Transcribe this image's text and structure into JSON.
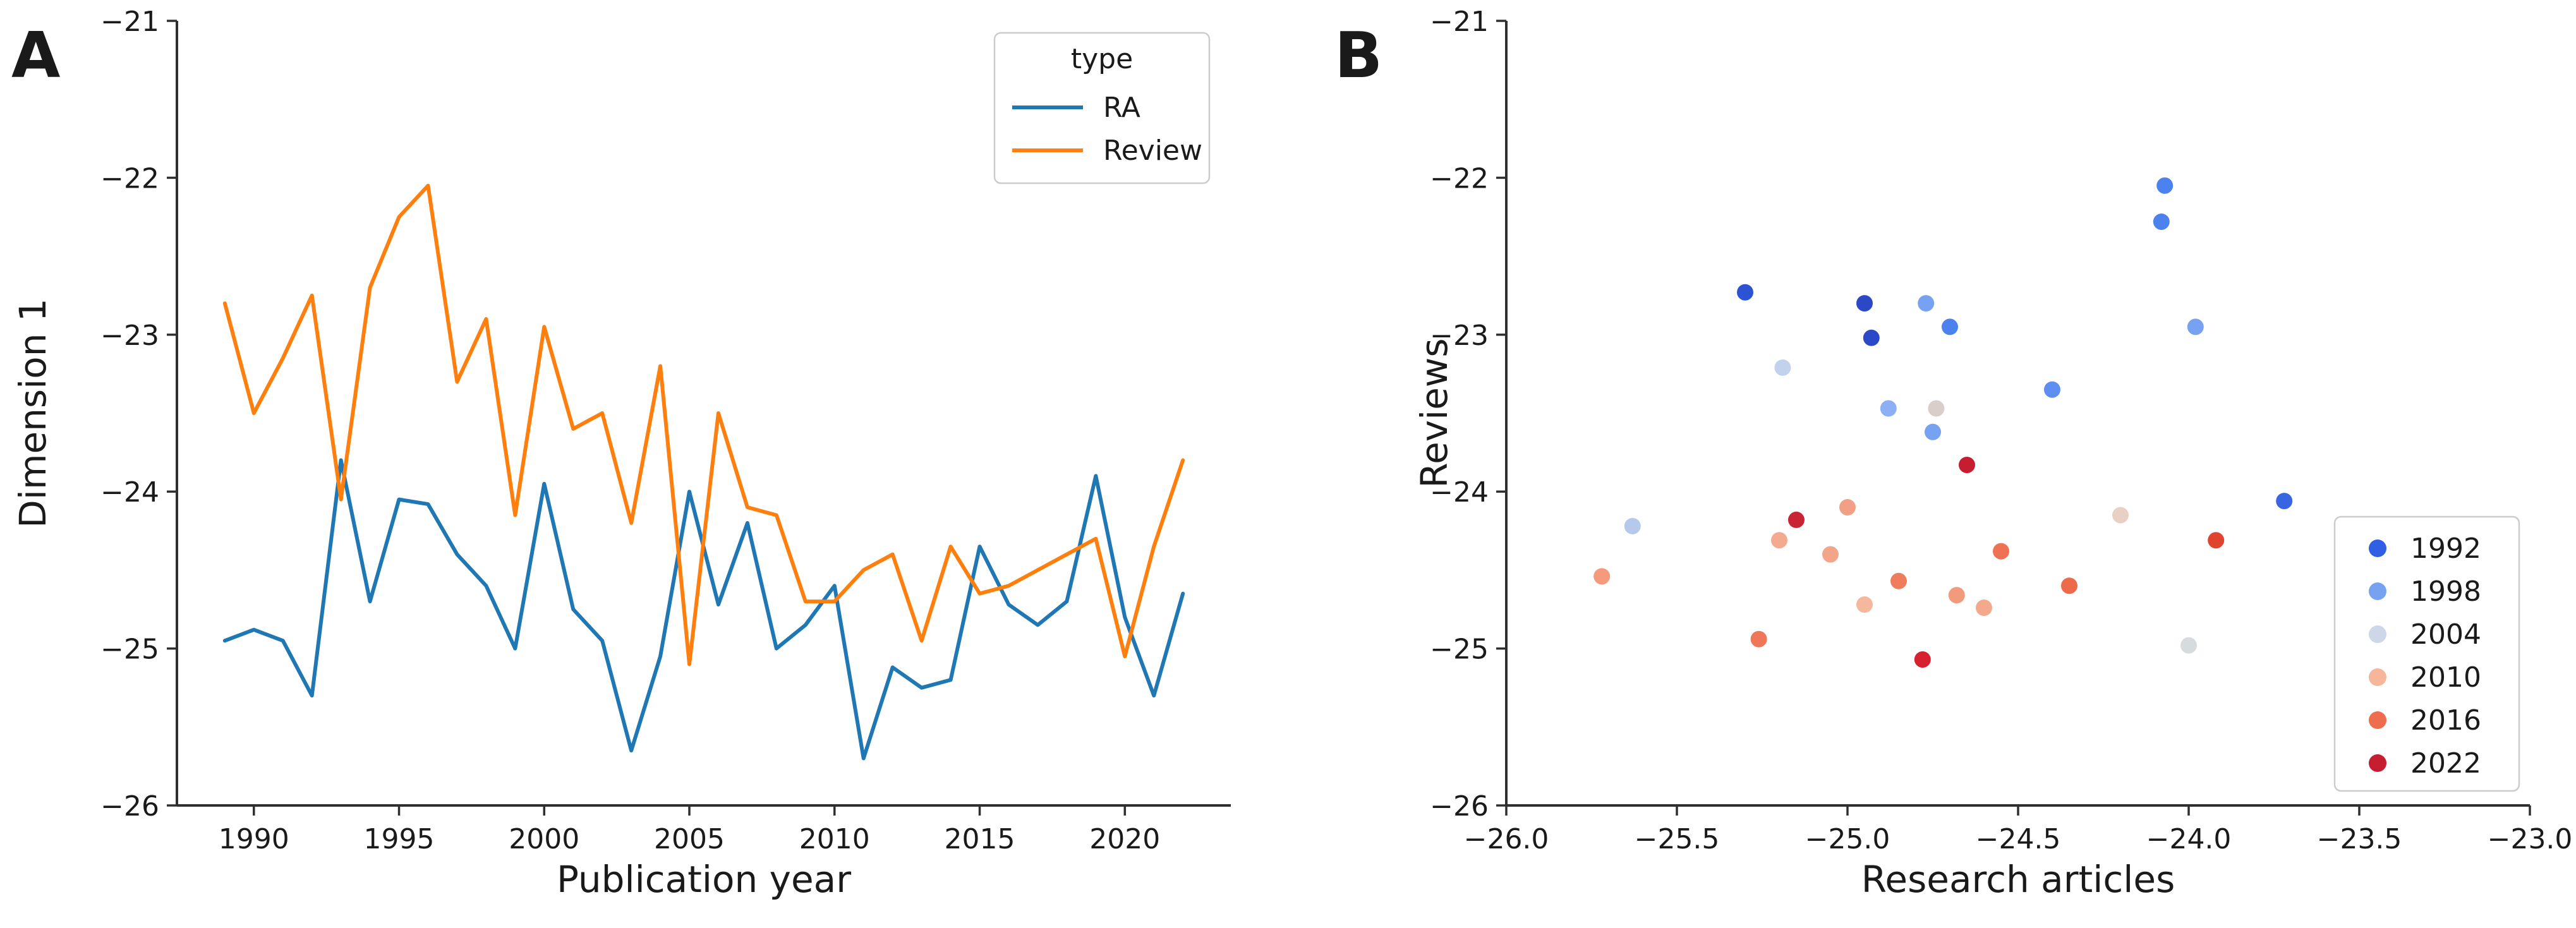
{
  "figure": {
    "background": "#ffffff",
    "panel_a_letter": "A",
    "panel_b_letter": "B"
  },
  "chart_data": [
    {
      "id": "panel-a",
      "type": "line",
      "xlabel": "Publication year",
      "ylabel": "Dimension 1",
      "xlim": [
        1987.35,
        2023.65
      ],
      "ylim": [
        -26,
        -21
      ],
      "xticks": [
        1990,
        1995,
        2000,
        2005,
        2010,
        2015,
        2020
      ],
      "xtick_labels": [
        "1990",
        "1995",
        "2000",
        "2005",
        "2010",
        "2015",
        "2020"
      ],
      "yticks": [
        -21,
        -22,
        -23,
        -24,
        -25,
        -26
      ],
      "ytick_labels": [
        "−21",
        "−22",
        "−23",
        "−24",
        "−25",
        "−26"
      ],
      "grid": false,
      "legend": {
        "title": "type",
        "position": "upper right",
        "entries": [
          {
            "label": "RA",
            "color": "#1f77b4"
          },
          {
            "label": "Review",
            "color": "#ff7f0e"
          }
        ]
      },
      "x": [
        1989,
        1990,
        1991,
        1992,
        1993,
        1994,
        1995,
        1996,
        1997,
        1998,
        1999,
        2000,
        2001,
        2002,
        2003,
        2004,
        2005,
        2006,
        2007,
        2008,
        2009,
        2010,
        2011,
        2012,
        2013,
        2014,
        2015,
        2016,
        2017,
        2018,
        2019,
        2020,
        2021,
        2022
      ],
      "series": [
        {
          "name": "RA",
          "color": "#1f77b4",
          "values": [
            -24.95,
            -24.88,
            -24.95,
            -25.3,
            -23.8,
            -24.7,
            -24.05,
            -24.08,
            -24.4,
            -24.6,
            -25.0,
            -23.95,
            -24.75,
            -24.95,
            -25.65,
            -25.05,
            -24.0,
            -24.72,
            -24.2,
            -25.0,
            -24.85,
            -24.6,
            -25.7,
            -25.12,
            -25.25,
            -25.2,
            -24.35,
            -24.72,
            -24.85,
            -24.7,
            -23.9,
            -24.8,
            -25.3,
            -24.65
          ]
        },
        {
          "name": "Review",
          "color": "#ff7f0e",
          "values": [
            -22.8,
            -23.5,
            -23.15,
            -22.75,
            -24.05,
            -22.7,
            -22.25,
            -22.05,
            -23.3,
            -22.9,
            -24.15,
            -22.95,
            -23.6,
            -23.5,
            -24.2,
            -23.2,
            -25.1,
            -23.5,
            -24.1,
            -24.15,
            -24.7,
            -24.7,
            -24.5,
            -24.4,
            -24.95,
            -24.35,
            -24.65,
            -24.6,
            -24.5,
            -24.4,
            -24.3,
            -25.05,
            -24.35,
            -23.8
          ]
        }
      ]
    },
    {
      "id": "panel-b",
      "type": "scatter",
      "xlabel": "Research articles",
      "ylabel": "Reviews",
      "xlim": [
        -26,
        -23
      ],
      "ylim": [
        -26,
        -21
      ],
      "xticks": [
        -26.0,
        -25.5,
        -25.0,
        -24.5,
        -24.0,
        -23.5,
        -23.0
      ],
      "xtick_labels": [
        "−26.0",
        "−25.5",
        "−25.0",
        "−24.5",
        "−24.0",
        "−23.5",
        "−23.0"
      ],
      "yticks": [
        -21,
        -22,
        -23,
        -24,
        -25,
        -26
      ],
      "ytick_labels": [
        "−21",
        "−22",
        "−23",
        "−24",
        "−25",
        "−26"
      ],
      "grid": false,
      "legend": {
        "title": "",
        "position": "lower right",
        "entries": [
          {
            "label": "1992",
            "color": "#2f5fe2"
          },
          {
            "label": "1998",
            "color": "#76a2f1"
          },
          {
            "label": "2004",
            "color": "#cdd7e8"
          },
          {
            "label": "2010",
            "color": "#f6b69a"
          },
          {
            "label": "2016",
            "color": "#ee6d4e"
          },
          {
            "label": "2022",
            "color": "#c61d30"
          }
        ]
      },
      "points": [
        {
          "x": -24.07,
          "y": -22.05,
          "color": "#4b82ee"
        },
        {
          "x": -24.08,
          "y": -22.28,
          "color": "#4b82ee"
        },
        {
          "x": -25.3,
          "y": -22.73,
          "color": "#2d53d5"
        },
        {
          "x": -24.95,
          "y": -22.8,
          "color": "#2b49c7"
        },
        {
          "x": -24.77,
          "y": -22.8,
          "color": "#76a2f1"
        },
        {
          "x": -24.7,
          "y": -22.95,
          "color": "#4b82ee"
        },
        {
          "x": -24.93,
          "y": -23.02,
          "color": "#2b49c7"
        },
        {
          "x": -23.98,
          "y": -22.95,
          "color": "#76a2f1"
        },
        {
          "x": -25.19,
          "y": -23.21,
          "color": "#c3d2ec"
        },
        {
          "x": -24.4,
          "y": -23.35,
          "color": "#5e8ff0"
        },
        {
          "x": -24.88,
          "y": -23.47,
          "color": "#8cb0f3"
        },
        {
          "x": -24.74,
          "y": -23.47,
          "color": "#d9cfc8"
        },
        {
          "x": -24.75,
          "y": -23.62,
          "color": "#76a2f1"
        },
        {
          "x": -24.65,
          "y": -23.83,
          "color": "#c61d30"
        },
        {
          "x": -23.72,
          "y": -24.06,
          "color": "#3866e3"
        },
        {
          "x": -25.0,
          "y": -24.1,
          "color": "#f2a085"
        },
        {
          "x": -25.15,
          "y": -24.18,
          "color": "#c92433"
        },
        {
          "x": -25.2,
          "y": -24.31,
          "color": "#f4aa8e"
        },
        {
          "x": -25.05,
          "y": -24.4,
          "color": "#f3a58a"
        },
        {
          "x": -25.72,
          "y": -24.54,
          "color": "#f59a7c"
        },
        {
          "x": -24.85,
          "y": -24.57,
          "color": "#ee7d5e"
        },
        {
          "x": -24.95,
          "y": -24.72,
          "color": "#f6b89c"
        },
        {
          "x": -24.68,
          "y": -24.66,
          "color": "#f19a7c"
        },
        {
          "x": -24.6,
          "y": -24.74,
          "color": "#f4a98d"
        },
        {
          "x": -24.35,
          "y": -24.6,
          "color": "#ed6a4b"
        },
        {
          "x": -24.55,
          "y": -24.38,
          "color": "#ee7355"
        },
        {
          "x": -23.92,
          "y": -24.31,
          "color": "#e0442e"
        },
        {
          "x": -24.2,
          "y": -24.15,
          "color": "#e9d0c4"
        },
        {
          "x": -25.26,
          "y": -24.94,
          "color": "#f0765a"
        },
        {
          "x": -24.78,
          "y": -25.07,
          "color": "#d6212f"
        },
        {
          "x": -24.0,
          "y": -24.98,
          "color": "#d6dbde"
        },
        {
          "x": -25.63,
          "y": -24.22,
          "color": "#b5c9ea"
        }
      ]
    }
  ]
}
